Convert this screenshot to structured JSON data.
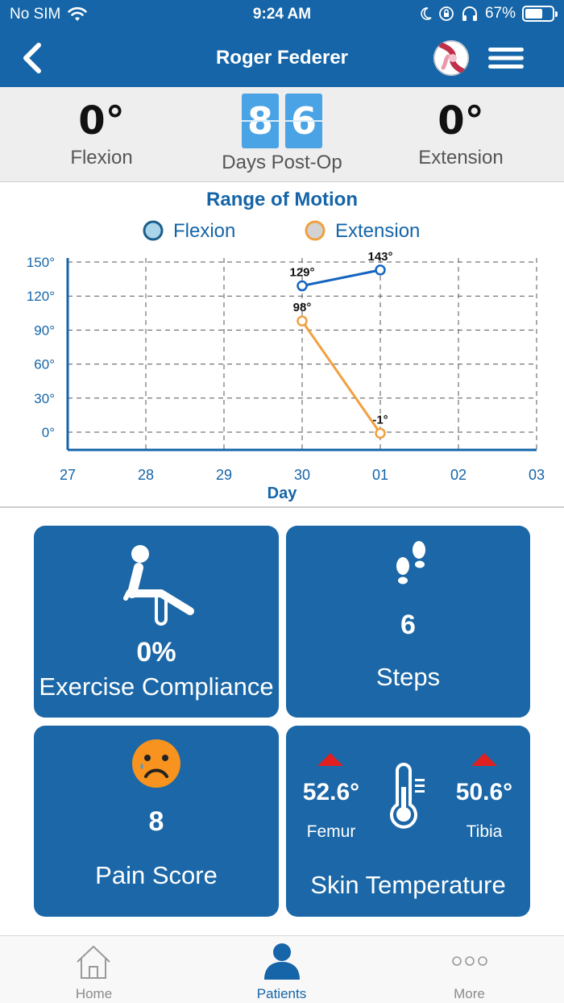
{
  "status_bar": {
    "carrier": "No SIM",
    "time": "9:24 AM",
    "battery": "67%",
    "battery_level": 0.67
  },
  "nav": {
    "title": "Roger Federer",
    "back_icon": "chevron-left-icon",
    "logo_icon": "knee-logo-icon",
    "menu_icon": "hamburger-menu-icon"
  },
  "summary": {
    "flexion_value": "0°",
    "flexion_label": "Flexion",
    "days_digits": [
      "8",
      "6"
    ],
    "days_label": "Days Post-Op",
    "extension_value": "0°",
    "extension_label": "Extension"
  },
  "chart_data": {
    "type": "line",
    "title": "Range of Motion",
    "xlabel": "Day",
    "ylabel": "",
    "x_ticks": [
      "27",
      "28",
      "29",
      "30",
      "01",
      "02",
      "03"
    ],
    "y_ticks": [
      "0°",
      "30°",
      "60°",
      "90°",
      "120°",
      "150°"
    ],
    "ylim": [
      0,
      150
    ],
    "grid": true,
    "legend_position": "top",
    "series": [
      {
        "name": "Flexion",
        "color": "#1565c0",
        "points": [
          {
            "x": "30",
            "y": 129,
            "label": "129°"
          },
          {
            "x": "01",
            "y": 143,
            "label": "143°"
          }
        ]
      },
      {
        "name": "Extension",
        "color": "#f0a040",
        "points": [
          {
            "x": "30",
            "y": 98,
            "label": "98°"
          },
          {
            "x": "01",
            "y": -1,
            "label": "-1°"
          }
        ]
      }
    ]
  },
  "tiles": {
    "exercise": {
      "icon": "seated-exercise-icon",
      "value": "0%",
      "label": "Exercise Compliance"
    },
    "steps": {
      "icon": "footprints-icon",
      "value": "6",
      "label": "Steps"
    },
    "pain": {
      "icon": "sad-face-icon",
      "value": "8",
      "label": "Pain Score"
    },
    "skin_temp": {
      "icon": "thermometer-icon",
      "femur_value": "52.6°",
      "femur_label": "Femur",
      "tibia_value": "50.6°",
      "tibia_label": "Tibia",
      "label": "Skin Temperature",
      "alert_color": "#e02020"
    }
  },
  "tabbar": {
    "items": [
      {
        "label": "Home",
        "icon": "home-icon"
      },
      {
        "label": "Patients",
        "icon": "person-icon"
      },
      {
        "label": "More",
        "icon": "more-dots-icon"
      }
    ],
    "active_color": "#1565a8"
  }
}
